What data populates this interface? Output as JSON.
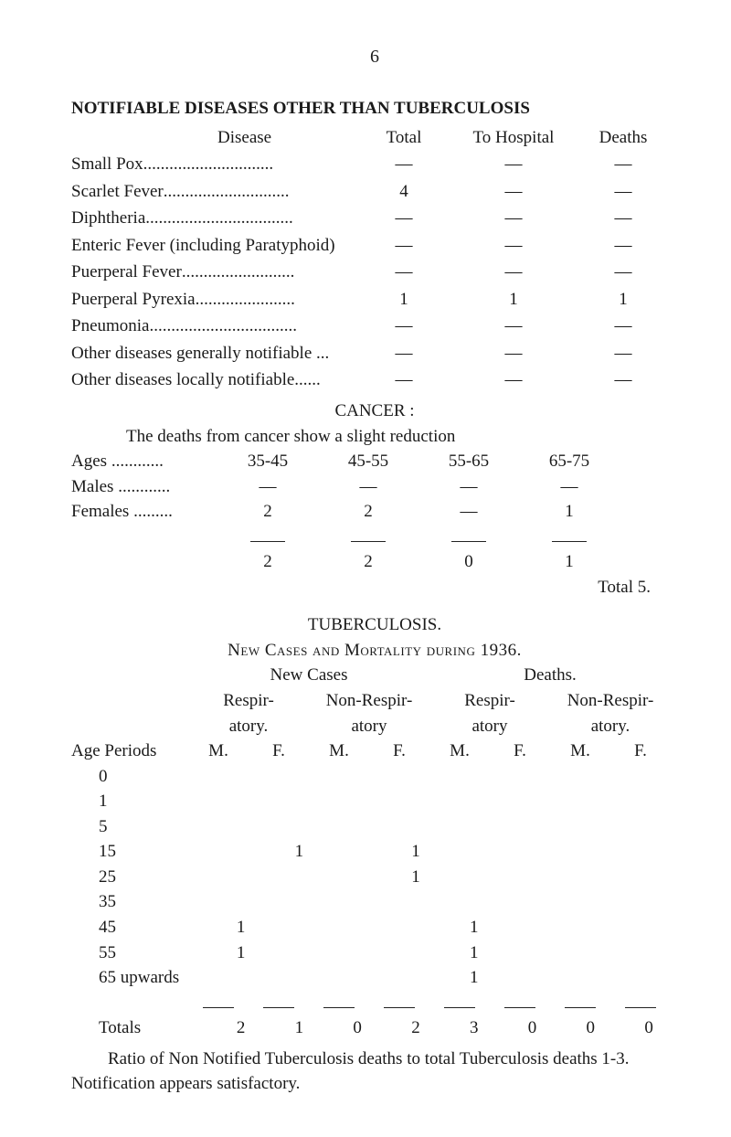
{
  "page_number": "6",
  "notifiable": {
    "title": "NOTIFIABLE DISEASES OTHER THAN TUBERCULOSIS",
    "headers": {
      "disease": "Disease",
      "total": "Total",
      "to_hospital": "To Hospital",
      "deaths": "Deaths"
    },
    "rows": [
      {
        "label": "Small Pox",
        "dots": "..............................",
        "total": "—",
        "to_hospital": "—",
        "deaths": "—"
      },
      {
        "label": "Scarlet Fever ",
        "dots": ".............................",
        "total": "4",
        "to_hospital": "—",
        "deaths": "—"
      },
      {
        "label": "Diphtheria ",
        "dots": "..................................",
        "total": "—",
        "to_hospital": "—",
        "deaths": "—"
      },
      {
        "label": "Enteric Fever (including Paratyphoid)",
        "dots": "",
        "total": "—",
        "to_hospital": "—",
        "deaths": "—"
      },
      {
        "label": "Puerperal Fever ",
        "dots": "..........................",
        "total": "—",
        "to_hospital": "—",
        "deaths": "—"
      },
      {
        "label": "Puerperal Pyrexia ",
        "dots": ".......................",
        "total": "1",
        "to_hospital": "1",
        "deaths": "1"
      },
      {
        "label": "Pneumonia ",
        "dots": "..................................",
        "total": "—",
        "to_hospital": "—",
        "deaths": "—"
      },
      {
        "label": "Other diseases generally notifiable ...",
        "dots": "",
        "total": "—",
        "to_hospital": "—",
        "deaths": "—"
      },
      {
        "label": "Other diseases locally notifiable ",
        "dots": "......",
        "total": "—",
        "to_hospital": "—",
        "deaths": "—"
      }
    ]
  },
  "cancer": {
    "heading": "CANCER :",
    "intro": "The deaths from cancer show a slight reduction",
    "col_labels": {
      "ages": "Ages ",
      "dots": "............",
      "c1": "35-45",
      "c2": "45-55",
      "c3": "55-65",
      "c4": "65-75"
    },
    "rows": [
      {
        "label": "Males ",
        "dots": "............",
        "c1": "—",
        "c2": "—",
        "c3": "—",
        "c4": "—"
      },
      {
        "label": "Females ",
        "dots": ".........",
        "c1": "2",
        "c2": "2",
        "c3": "—",
        "c4": "1"
      }
    ],
    "sum": {
      "c1": "2",
      "c2": "2",
      "c3": "0",
      "c4": "1"
    },
    "total_label": "Total 5."
  },
  "tb": {
    "title": "TUBERCULOSIS.",
    "subtitle": "New Cases and Mortality during 1936.",
    "group_headers": {
      "new_cases": "New Cases",
      "deaths": "Deaths."
    },
    "sub_headers": {
      "resp": "Respir-",
      "nonresp": "Non-Respir-",
      "atory": "atory.",
      "atory2": "atory"
    },
    "mf_headers": {
      "age": "Age Periods",
      "m": "M.",
      "f": "F."
    },
    "rows": [
      {
        "age": "0",
        "v": [
          "",
          "",
          "",
          "",
          "",
          "",
          "",
          ""
        ]
      },
      {
        "age": "1",
        "v": [
          "",
          "",
          "",
          "",
          "",
          "",
          "",
          ""
        ]
      },
      {
        "age": "5",
        "v": [
          "",
          "",
          "",
          "",
          "",
          "",
          "",
          ""
        ]
      },
      {
        "age": "15",
        "v": [
          "",
          "1",
          "",
          "1",
          "",
          "",
          "",
          ""
        ]
      },
      {
        "age": "25",
        "v": [
          "",
          "",
          "",
          "1",
          "",
          "",
          "",
          ""
        ]
      },
      {
        "age": "35",
        "v": [
          "",
          "",
          "",
          "",
          "",
          "",
          "",
          ""
        ]
      },
      {
        "age": "45",
        "v": [
          "1",
          "",
          "",
          "",
          "1",
          "",
          "",
          ""
        ]
      },
      {
        "age": "55",
        "v": [
          "1",
          "",
          "",
          "",
          "1",
          "",
          "",
          ""
        ]
      },
      {
        "age": "65 upwards",
        "v": [
          "",
          "",
          "",
          "",
          "1",
          "",
          "",
          ""
        ]
      }
    ],
    "totals": {
      "label": "Totals",
      "v": [
        "2",
        "1",
        "0",
        "2",
        "3",
        "0",
        "0",
        "0"
      ]
    },
    "para1": "Ratio of Non Notified Tuberculosis deaths to total Tuberculosis deaths 1-3.   Notification appears satisfactory."
  }
}
